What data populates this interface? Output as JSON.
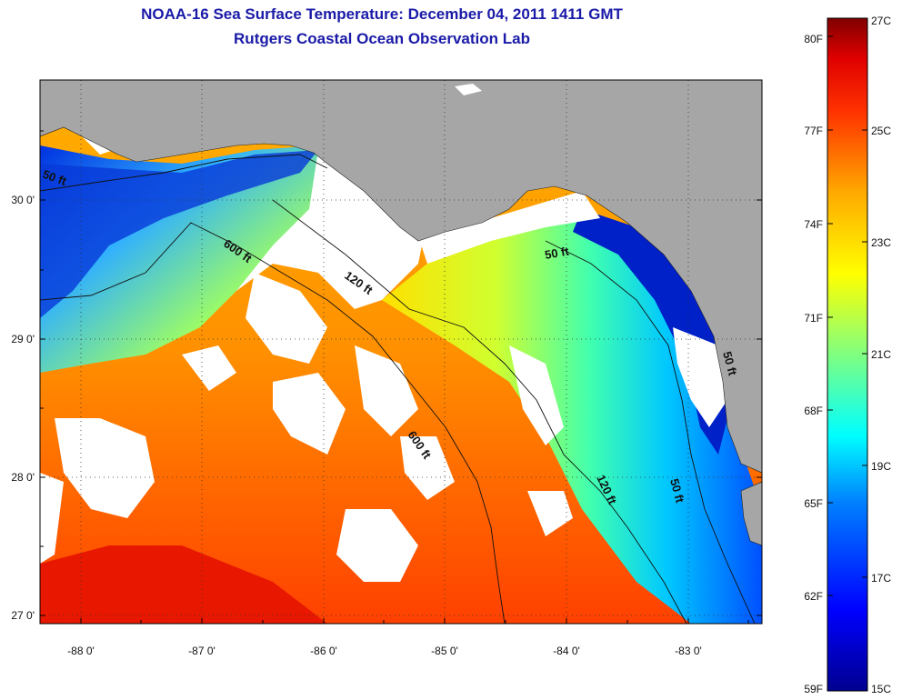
{
  "title": {
    "line1": "NOAA-16 Sea Surface Temperature:  December 04, 2011 1411 GMT",
    "line2": "Rutgers Coastal Ocean Observation Lab"
  },
  "map": {
    "lon_range": [
      -88.33,
      -82.42
    ],
    "lat_range": [
      26.96,
      30.83
    ],
    "lon_ticks": [
      "-88 0'",
      "-87 0'",
      "-86 0'",
      "-85 0'",
      "-84 0'",
      "-83 0'"
    ],
    "lat_ticks": [
      "27 0'",
      "28 0'",
      "29 0'",
      "30 0'"
    ],
    "grid": "dotted",
    "land_color": "#a6a6a6",
    "cloud_color": "#ffffff",
    "contour_labels": {
      "west_50": "50 ft",
      "west_600": "600 ft",
      "mid_120": "120 ft",
      "mid_600": "600 ft",
      "east_50": "50 ft",
      "east_120": "120 ft",
      "east_50_lower": "50 ft",
      "east_50_coast": "50 ft"
    }
  },
  "colorbar": {
    "fahrenheit_labels": [
      "80F",
      "77F",
      "74F",
      "71F",
      "68F",
      "65F",
      "62F",
      "59F"
    ],
    "celsius_labels": [
      "27C",
      "25C",
      "23C",
      "21C",
      "19C",
      "17C",
      "15C"
    ],
    "range_c": [
      15,
      27
    ],
    "colors": [
      "#00008f",
      "#0000ff",
      "#00aaff",
      "#00ffff",
      "#80ff80",
      "#ffff00",
      "#ffaa00",
      "#ff5500",
      "#ff0000",
      "#800000"
    ]
  }
}
